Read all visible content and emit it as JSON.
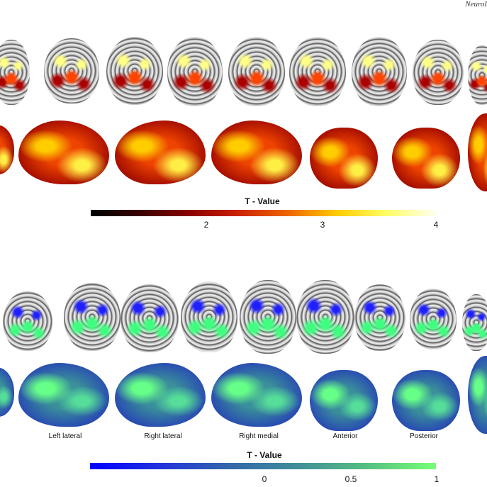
{
  "header": {
    "journal_fragment": "NeuroI"
  },
  "panel_top": {
    "colorbar": {
      "title": "T - Value",
      "colors": [
        "#000000",
        "#3a0000",
        "#8b0000",
        "#cc2200",
        "#ee6600",
        "#ffcc00",
        "#ffff66",
        "#fffff0"
      ],
      "ticks": [
        "2",
        "3",
        "4"
      ]
    },
    "accent_colors": [
      "#ffff88",
      "#ff4400",
      "#aa0000"
    ]
  },
  "panel_bottom": {
    "colorbar": {
      "title": "T - Value",
      "colors": [
        "#0000ff",
        "#2233dd",
        "#3366aa",
        "#3f8f9a",
        "#55c080",
        "#77ff77"
      ],
      "ticks": [
        "0",
        "0.5",
        "1"
      ]
    },
    "accent_colors": [
      "#2020ff",
      "#40ff80"
    ],
    "view_labels": [
      "Left lateral",
      "Right lateral",
      "Right medial",
      "Anterior",
      "Posterior"
    ]
  }
}
